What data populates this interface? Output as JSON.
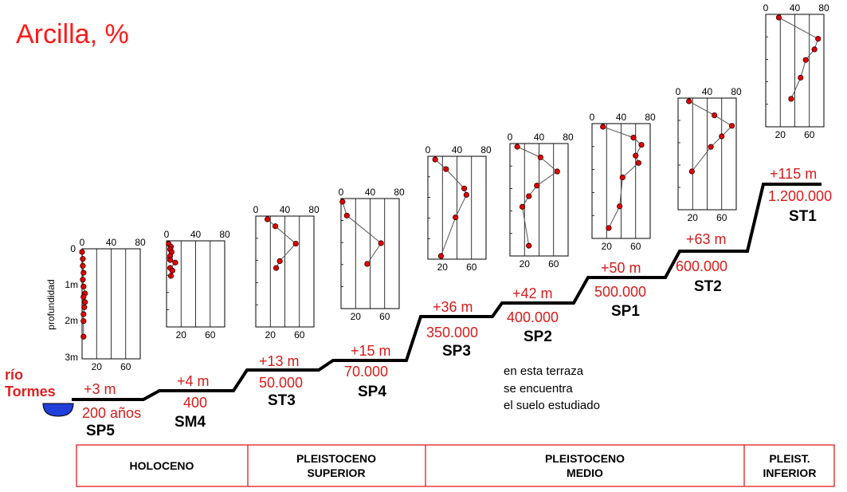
{
  "title": "Arcilla,  %",
  "river": {
    "line1": "río",
    "line2": "Tormes"
  },
  "depth_axis": {
    "label": "profundidad",
    "ticks": [
      "0",
      "1m",
      "2m",
      "3m"
    ]
  },
  "note": [
    "en esta terraza",
    "se encuentra",
    "el suelo estudiado"
  ],
  "periods": [
    "HOLOCENO",
    "PLEISTOCENO SUPERIOR",
    "PLEISTOCENO MEDIO",
    "PLEIST. INFERIOR"
  ],
  "colors": {
    "title": "#ff1a1a",
    "labels": "#d81b1b",
    "water": "#1f3fd8",
    "points": "#e00000",
    "border": "#e01e1e"
  },
  "terraces": [
    {
      "site": "SP5",
      "height": "+3 m",
      "age": "200 años"
    },
    {
      "site": "SM4",
      "height": "+4 m",
      "age": "400"
    },
    {
      "site": "ST3",
      "height": "+13 m",
      "age": "50.000"
    },
    {
      "site": "SP4",
      "height": "+15 m",
      "age": "70.000"
    },
    {
      "site": "SP3",
      "height": "+36 m",
      "age": "350.000"
    },
    {
      "site": "SP2",
      "height": "+42 m",
      "age": "400.000"
    },
    {
      "site": "SP1",
      "height": "+50 m",
      "age": "500.000"
    },
    {
      "site": "ST2",
      "height": "+63 m",
      "age": "600.000"
    },
    {
      "site": "ST1",
      "height": "+115 m",
      "age": "1.200.000"
    }
  ],
  "chart_data": [
    {
      "type": "line",
      "site": "SP5",
      "x_ticks_top": [
        "0",
        "40",
        "80"
      ],
      "x_ticks_bottom": [
        "20",
        "60"
      ],
      "xlim": [
        0,
        80
      ],
      "points": [
        [
          0,
          0.0
        ],
        [
          1,
          0.2
        ],
        [
          1,
          0.4
        ],
        [
          2,
          0.6
        ],
        [
          1,
          0.8
        ],
        [
          2,
          1.0
        ],
        [
          4,
          1.2
        ],
        [
          2,
          1.3
        ],
        [
          4,
          1.45
        ],
        [
          3,
          1.6
        ],
        [
          2,
          1.8
        ],
        [
          2,
          2.0
        ],
        [
          2,
          2.45
        ]
      ]
    },
    {
      "type": "line",
      "site": "SM4",
      "x_ticks_top": [
        "0",
        "40",
        "80"
      ],
      "x_ticks_bottom": [
        "20",
        "60"
      ],
      "xlim": [
        0,
        80
      ],
      "points": [
        [
          3,
          0.0
        ],
        [
          6,
          0.1
        ],
        [
          5,
          0.2
        ],
        [
          7,
          0.3
        ],
        [
          5,
          0.45
        ],
        [
          5,
          0.6
        ],
        [
          12,
          0.7
        ],
        [
          5,
          0.9
        ],
        [
          8,
          1.0
        ],
        [
          6,
          1.2
        ]
      ]
    },
    {
      "type": "line",
      "site": "ST3",
      "x_ticks_top": [
        "0",
        "40",
        "80"
      ],
      "x_ticks_bottom": [
        "20",
        "60"
      ],
      "xlim": [
        0,
        80
      ],
      "points": [
        [
          16,
          0.0
        ],
        [
          27,
          0.2
        ],
        [
          55,
          0.7
        ],
        [
          33,
          1.2
        ],
        [
          28,
          1.4
        ]
      ]
    },
    {
      "type": "line",
      "site": "SP4",
      "x_ticks_top": [
        "0",
        "40",
        "80"
      ],
      "x_ticks_bottom": [
        "20",
        "60"
      ],
      "xlim": [
        0,
        80
      ],
      "points": [
        [
          2,
          0.0
        ],
        [
          8,
          0.4
        ],
        [
          55,
          1.2
        ],
        [
          36,
          1.8
        ]
      ]
    },
    {
      "type": "line",
      "site": "SP3",
      "x_ticks_top": [
        "0",
        "40",
        "80"
      ],
      "x_ticks_bottom": [
        "20",
        "60"
      ],
      "xlim": [
        0,
        80
      ],
      "points": [
        [
          10,
          0.0
        ],
        [
          25,
          0.3
        ],
        [
          50,
          0.9
        ],
        [
          53,
          1.1
        ],
        [
          38,
          1.8
        ],
        [
          18,
          3.0
        ]
      ]
    },
    {
      "type": "line",
      "site": "SP2",
      "x_ticks_top": [
        "0",
        "40",
        "80"
      ],
      "x_ticks_bottom": [
        "20",
        "60"
      ],
      "xlim": [
        0,
        80
      ],
      "points": [
        [
          10,
          0.0
        ],
        [
          42,
          0.3
        ],
        [
          65,
          0.7
        ],
        [
          37,
          1.1
        ],
        [
          26,
          1.4
        ],
        [
          17,
          1.7
        ],
        [
          26,
          2.8
        ]
      ]
    },
    {
      "type": "line",
      "site": "SP1",
      "x_ticks_top": [
        "0",
        "40",
        "80"
      ],
      "x_ticks_bottom": [
        "20",
        "60"
      ],
      "xlim": [
        0,
        80
      ],
      "points": [
        [
          15,
          0.0
        ],
        [
          57,
          0.3
        ],
        [
          68,
          0.5
        ],
        [
          60,
          0.8
        ],
        [
          64,
          1.0
        ],
        [
          42,
          1.4
        ],
        [
          38,
          2.2
        ],
        [
          23,
          2.8
        ]
      ]
    },
    {
      "type": "line",
      "site": "ST2",
      "x_ticks_top": [
        "0",
        "40",
        "80"
      ],
      "x_ticks_bottom": [
        "20",
        "60"
      ],
      "xlim": [
        0,
        80
      ],
      "points": [
        [
          15,
          0.0
        ],
        [
          50,
          0.4
        ],
        [
          74,
          0.7
        ],
        [
          60,
          1.0
        ],
        [
          45,
          1.3
        ],
        [
          19,
          2.0
        ]
      ]
    },
    {
      "type": "line",
      "site": "ST1",
      "x_ticks_top": [
        "0",
        "40",
        "80"
      ],
      "x_ticks_bottom": [
        "20",
        "60"
      ],
      "xlim": [
        0,
        80
      ],
      "points": [
        [
          18,
          0.0
        ],
        [
          72,
          0.6
        ],
        [
          67,
          0.9
        ],
        [
          55,
          1.2
        ],
        [
          48,
          1.7
        ],
        [
          35,
          2.3
        ]
      ]
    }
  ]
}
